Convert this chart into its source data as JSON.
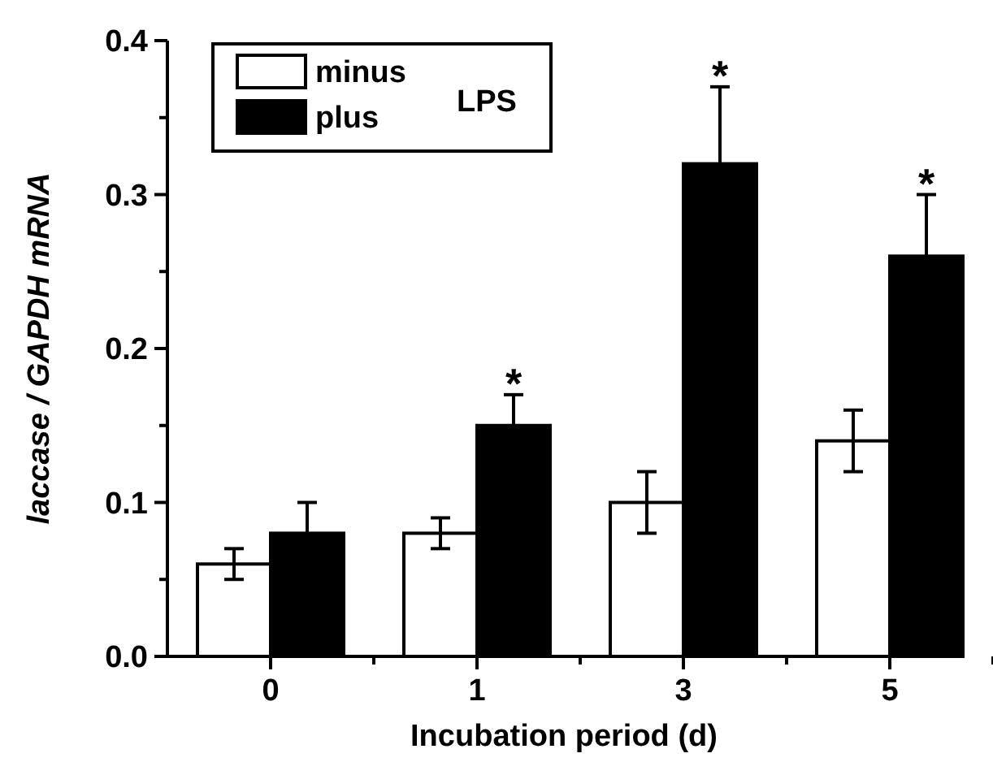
{
  "chart_data": {
    "type": "bar",
    "xlabel": "Incubation period (d)",
    "ylabel": "laccase / GAPDH mRNA",
    "legend_title": "LPS",
    "categories": [
      "0",
      "1",
      "3",
      "5"
    ],
    "series": [
      {
        "name": "minus",
        "color": "#ffffff",
        "values": [
          0.06,
          0.08,
          0.1,
          0.14
        ],
        "errors": [
          0.01,
          0.01,
          0.02,
          0.02
        ]
      },
      {
        "name": "plus",
        "color": "#000000",
        "values": [
          0.08,
          0.15,
          0.32,
          0.26
        ],
        "errors": [
          0.02,
          0.02,
          0.05,
          0.04
        ]
      }
    ],
    "ylim": [
      0,
      0.4
    ],
    "yticks": [
      {
        "value": 0,
        "label": "0.0"
      },
      {
        "value": 0.05,
        "label": null
      },
      0.1,
      {
        "value": 0.15,
        "label": null
      },
      0.2,
      {
        "value": 0.25,
        "label": null
      },
      0.3,
      {
        "value": 0.35,
        "label": null
      },
      0.4
    ],
    "annotations": [
      {
        "text": "*",
        "x": "1",
        "y": 0.15
      },
      {
        "text": "*",
        "x": "3",
        "y": 0.32
      },
      {
        "text": "*",
        "x": "5",
        "y": 0.26
      }
    ],
    "legend": "top left",
    "grid": false
  }
}
